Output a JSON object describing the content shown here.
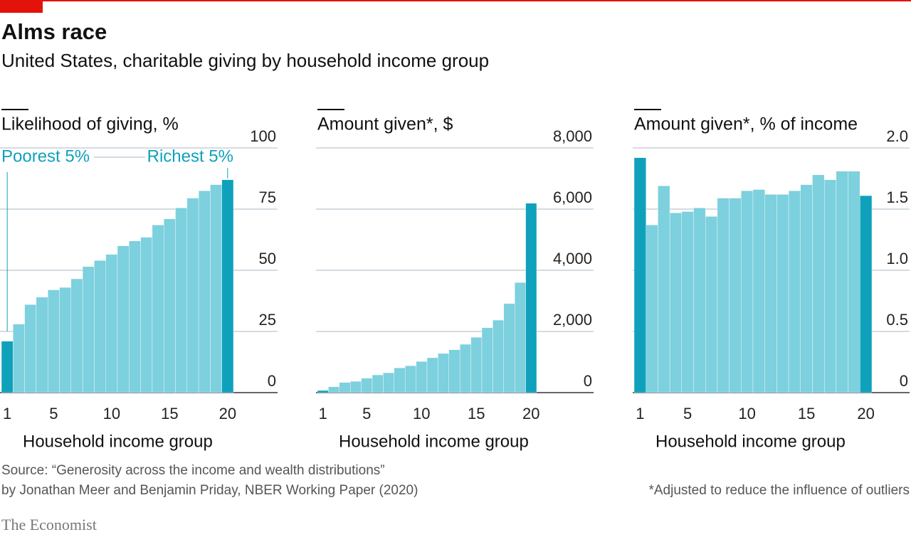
{
  "title": "Alms race",
  "subtitle": "United States, charitable giving by household income group",
  "source": [
    "Source: “Generosity across the income and wealth distributions”",
    "by Jonathan Meer and Benjamin Priday, NBER Working Paper (2020)"
  ],
  "note": "*Adjusted to reduce the influence of outliers",
  "brand": "The Economist",
  "chart_data": [
    {
      "type": "bar",
      "title": "Likelihood of giving, %",
      "x_label": "Household income group",
      "categories": [
        "1",
        null,
        null,
        null,
        "5",
        null,
        null,
        null,
        null,
        "10",
        null,
        null,
        null,
        null,
        "15",
        null,
        null,
        null,
        null,
        "20"
      ],
      "values": [
        21,
        28,
        36,
        39,
        42,
        43,
        46.5,
        51.5,
        54,
        56.5,
        60,
        62,
        63.5,
        68.5,
        71,
        75.5,
        79.5,
        82.5,
        85,
        87
      ],
      "colors": [
        "#0fa1bb",
        "#7dd0de",
        "#7dd0de",
        "#7dd0de",
        "#7dd0de",
        "#7dd0de",
        "#7dd0de",
        "#7dd0de",
        "#7dd0de",
        "#7dd0de",
        "#7dd0de",
        "#7dd0de",
        "#7dd0de",
        "#7dd0de",
        "#7dd0de",
        "#7dd0de",
        "#7dd0de",
        "#7dd0de",
        "#7dd0de",
        "#0fa1bb"
      ],
      "annotations": [
        "Poorest 5%",
        "Richest 5%"
      ],
      "ylim": [
        0,
        100
      ],
      "yticks": [
        0,
        25,
        50,
        75,
        100
      ],
      "grid": true
    },
    {
      "type": "bar",
      "title": "Amount given*, $",
      "x_label": "Household income group",
      "categories": [
        "1",
        null,
        null,
        null,
        "5",
        null,
        null,
        null,
        null,
        "10",
        null,
        null,
        null,
        null,
        "15",
        null,
        null,
        null,
        null,
        "20"
      ],
      "values": [
        70,
        190,
        330,
        370,
        470,
        580,
        650,
        810,
        880,
        1020,
        1140,
        1280,
        1400,
        1580,
        1810,
        2120,
        2370,
        2910,
        3600,
        6190
      ],
      "colors": [
        "#0fa1bb",
        "#7dd0de",
        "#7dd0de",
        "#7dd0de",
        "#7dd0de",
        "#7dd0de",
        "#7dd0de",
        "#7dd0de",
        "#7dd0de",
        "#7dd0de",
        "#7dd0de",
        "#7dd0de",
        "#7dd0de",
        "#7dd0de",
        "#7dd0de",
        "#7dd0de",
        "#7dd0de",
        "#7dd0de",
        "#7dd0de",
        "#0fa1bb"
      ],
      "ylim": [
        0,
        8000
      ],
      "yticks": [
        0,
        {
          "value": 2000,
          "label": "2,000"
        },
        {
          "value": 4000,
          "label": "4,000"
        },
        {
          "value": 6000,
          "label": "6,000"
        },
        {
          "value": 8000,
          "label": "8,000"
        }
      ],
      "grid": true
    },
    {
      "type": "bar",
      "title": "Amount given*, % of income",
      "x_label": "Household income group",
      "categories": [
        "1",
        null,
        null,
        null,
        "5",
        null,
        null,
        null,
        null,
        "10",
        null,
        null,
        null,
        null,
        "15",
        null,
        null,
        null,
        null,
        "20"
      ],
      "values": [
        1.92,
        1.37,
        1.69,
        1.47,
        1.48,
        1.51,
        1.44,
        1.59,
        1.59,
        1.65,
        1.66,
        1.62,
        1.62,
        1.65,
        1.7,
        1.78,
        1.74,
        1.81,
        1.81,
        1.61
      ],
      "colors": [
        "#0fa1bb",
        "#7dd0de",
        "#7dd0de",
        "#7dd0de",
        "#7dd0de",
        "#7dd0de",
        "#7dd0de",
        "#7dd0de",
        "#7dd0de",
        "#7dd0de",
        "#7dd0de",
        "#7dd0de",
        "#7dd0de",
        "#7dd0de",
        "#7dd0de",
        "#7dd0de",
        "#7dd0de",
        "#7dd0de",
        "#7dd0de",
        "#0fa1bb"
      ],
      "ylim": [
        0,
        2
      ],
      "yticks": [
        0,
        0.5,
        {
          "value": 1,
          "label": "1.0"
        },
        1.5,
        {
          "value": 2,
          "label": "2.0"
        }
      ],
      "grid": true
    }
  ]
}
